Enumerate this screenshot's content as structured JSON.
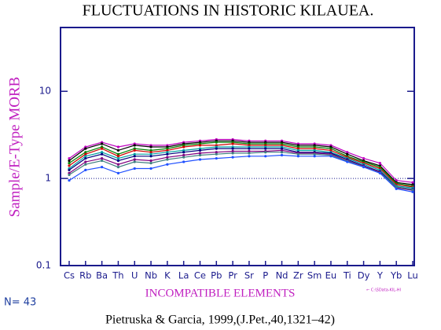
{
  "chart_data": {
    "type": "line",
    "title": "FLUCTUATIONS IN HISTORIC KILAUEA.",
    "ylabel": "Sample/E-Type MORB",
    "xlabel": "INCOMPATIBLE ELEMENTS",
    "count_label": "N= 43",
    "file_note": "← C:\\SData-KIL-HI",
    "footer": "Pietruska & Garcia, 1999,(J.Pet.,40,1321–42)",
    "log_y": true,
    "ylim": [
      0.1,
      54
    ],
    "yticks": [
      0.1,
      1,
      10
    ],
    "reference_line": 1,
    "categories": [
      "Cs",
      "Rb",
      "Ba",
      "Th",
      "U",
      "Nb",
      "K",
      "La",
      "Ce",
      "Pb",
      "Pr",
      "Sr",
      "P",
      "Nd",
      "Zr",
      "Sm",
      "Eu",
      "Ti",
      "Dy",
      "Y",
      "Yb",
      "Lu"
    ],
    "series": [
      {
        "color": "#c000c0",
        "values": [
          1.7,
          2.3,
          2.6,
          2.3,
          2.5,
          2.4,
          2.4,
          2.6,
          2.7,
          2.8,
          2.8,
          2.7,
          2.7,
          2.7,
          2.5,
          2.5,
          2.4,
          2.0,
          1.7,
          1.5,
          0.95,
          0.9
        ]
      },
      {
        "color": "#000000",
        "values": [
          1.6,
          2.2,
          2.5,
          2.1,
          2.4,
          2.3,
          2.3,
          2.5,
          2.6,
          2.7,
          2.7,
          2.6,
          2.6,
          2.6,
          2.4,
          2.4,
          2.3,
          1.9,
          1.6,
          1.4,
          0.9,
          0.85
        ]
      },
      {
        "color": "#008000",
        "values": [
          1.5,
          2.0,
          2.3,
          1.9,
          2.2,
          2.1,
          2.2,
          2.4,
          2.5,
          2.6,
          2.6,
          2.5,
          2.5,
          2.5,
          2.3,
          2.3,
          2.2,
          1.8,
          1.55,
          1.35,
          0.88,
          0.82
        ]
      },
      {
        "color": "#d00000",
        "values": [
          1.4,
          1.9,
          2.2,
          1.8,
          2.1,
          2.0,
          2.1,
          2.3,
          2.4,
          2.4,
          2.5,
          2.4,
          2.4,
          2.4,
          2.2,
          2.2,
          2.1,
          1.75,
          1.5,
          1.3,
          0.85,
          0.8
        ]
      },
      {
        "color": "#00a0a0",
        "values": [
          1.3,
          1.8,
          2.0,
          1.7,
          1.9,
          1.9,
          2.0,
          2.1,
          2.2,
          2.3,
          2.3,
          2.3,
          2.3,
          2.3,
          2.1,
          2.1,
          2.0,
          1.7,
          1.45,
          1.25,
          0.82,
          0.78
        ]
      },
      {
        "color": "#000080",
        "values": [
          1.25,
          1.7,
          1.9,
          1.6,
          1.8,
          1.8,
          1.9,
          2.0,
          2.1,
          2.2,
          2.2,
          2.2,
          2.2,
          2.2,
          2.0,
          2.0,
          1.95,
          1.65,
          1.4,
          1.2,
          0.8,
          0.75
        ]
      },
      {
        "color": "#800080",
        "values": [
          1.15,
          1.55,
          1.7,
          1.45,
          1.65,
          1.6,
          1.75,
          1.85,
          1.95,
          2.0,
          2.05,
          2.05,
          2.05,
          2.1,
          1.95,
          1.95,
          1.9,
          1.6,
          1.38,
          1.18,
          0.78,
          0.73
        ]
      },
      {
        "color": "#408080",
        "values": [
          1.1,
          1.45,
          1.6,
          1.35,
          1.55,
          1.5,
          1.65,
          1.75,
          1.85,
          1.9,
          1.95,
          1.95,
          2.0,
          2.0,
          1.9,
          1.9,
          1.85,
          1.58,
          1.36,
          1.16,
          0.8,
          0.74
        ]
      },
      {
        "color": "#2050ff",
        "values": [
          0.95,
          1.25,
          1.35,
          1.15,
          1.3,
          1.3,
          1.45,
          1.55,
          1.65,
          1.7,
          1.75,
          1.8,
          1.8,
          1.85,
          1.8,
          1.8,
          1.8,
          1.55,
          1.35,
          1.15,
          0.76,
          0.7
        ]
      }
    ]
  }
}
